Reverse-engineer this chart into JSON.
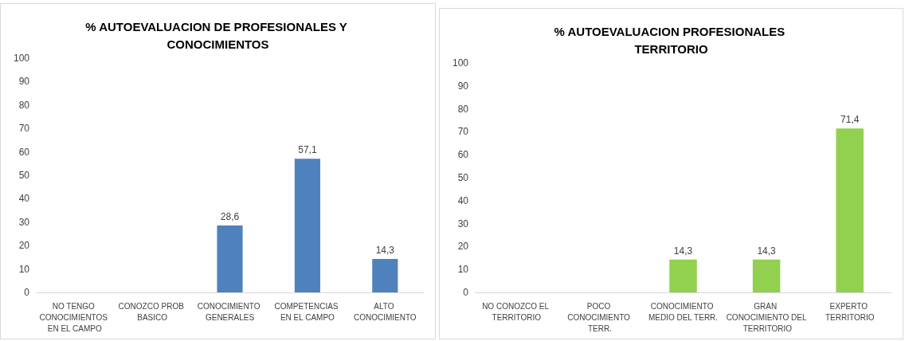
{
  "chart_data": [
    {
      "type": "bar",
      "title": "% AUTOEVALUACION DE PROFESIONALES Y CONOCIMIENTOS",
      "categories": [
        "NO TENGO CONOCIMIENTOS EN EL CAMPO",
        "CONOZCO PROB BASICO",
        "CONOCIMIENTO GENERALES",
        "COMPETENCIAS EN EL CAMPO",
        "ALTO CONOCIMIENTO"
      ],
      "values": [
        0,
        0,
        28.6,
        57.1,
        14.3
      ],
      "value_labels": [
        null,
        null,
        "28,6",
        "57,1",
        "14,3"
      ],
      "color": "#4f81bd",
      "ylim": [
        0,
        100
      ],
      "yticks": [
        0,
        10,
        20,
        30,
        40,
        50,
        60,
        70,
        80,
        90,
        100
      ]
    },
    {
      "type": "bar",
      "title": "% AUTOEVALUACION PROFESIONALES TERRITORIO",
      "categories": [
        "NO CONOZCO EL TERRITORIO",
        "POCO CONOCIMIENTO TERR.",
        "CONOCIMIENTO MEDIO DEL TERR.",
        "GRAN CONOCIMIENTO DEL TERRITORIO",
        "EXPERTO TERRITORIO"
      ],
      "values": [
        0,
        0,
        14.3,
        14.3,
        71.4
      ],
      "value_labels": [
        null,
        null,
        "14,3",
        "14,3",
        "71,4"
      ],
      "color": "#92d050",
      "ylim": [
        0,
        100
      ],
      "yticks": [
        0,
        10,
        20,
        30,
        40,
        50,
        60,
        70,
        80,
        90,
        100
      ]
    }
  ]
}
